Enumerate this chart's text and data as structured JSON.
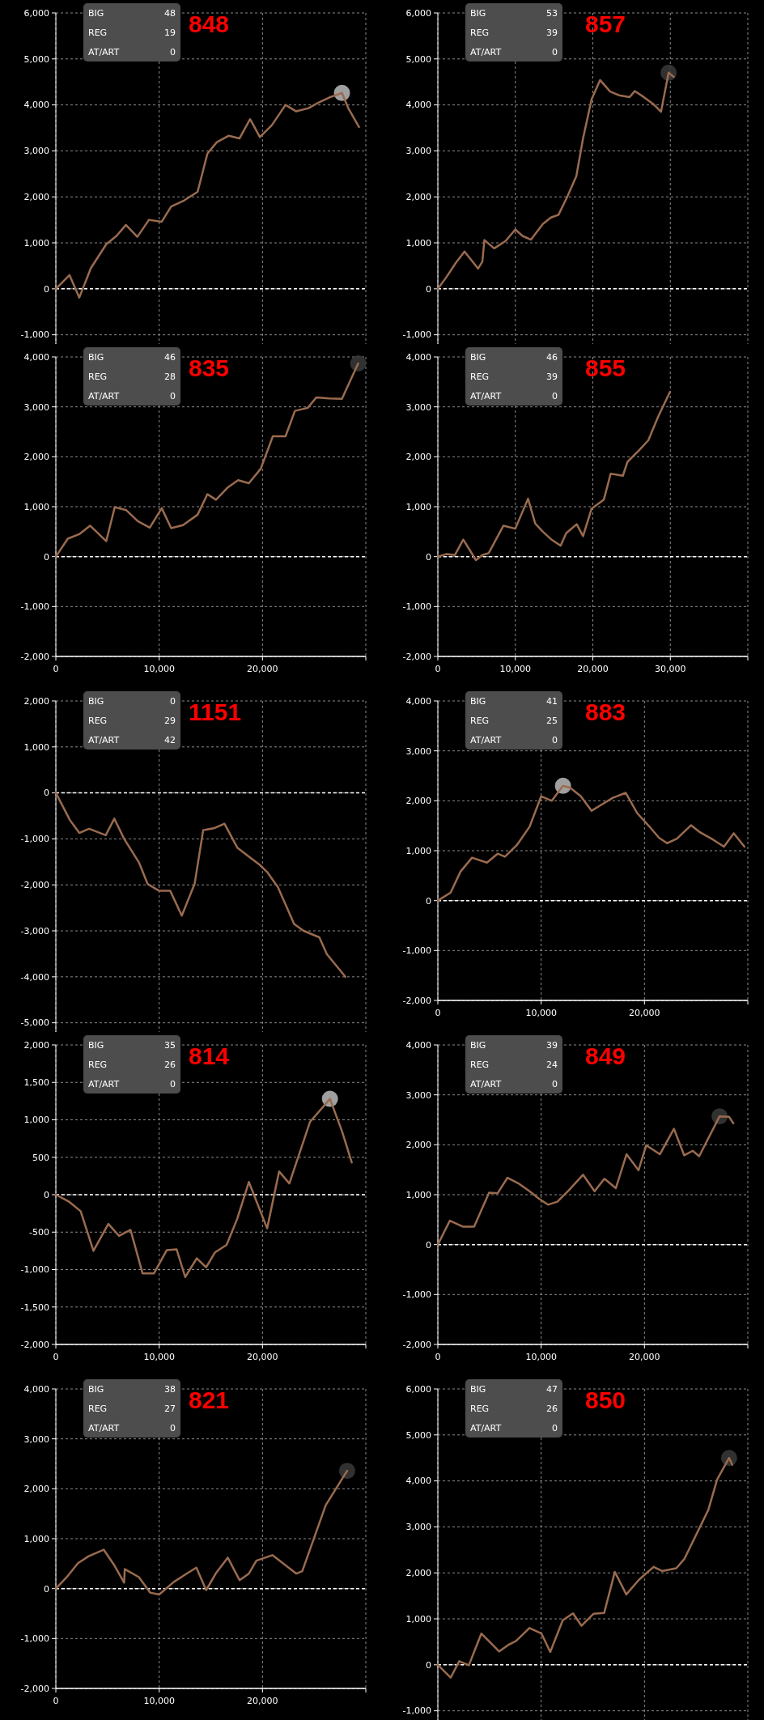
{
  "chart_data": [
    {
      "type": "line",
      "title": "848",
      "annotations": [
        "BIG",
        "48",
        "REG",
        "19",
        "AT/ART",
        "0"
      ],
      "xlim": [
        0,
        30000
      ],
      "xticks": [
        0,
        10000,
        20000,
        {
          "value": 30000,
          "label": null
        }
      ],
      "ylim": [
        -1200,
        6000
      ],
      "yticks": [
        {
          "value": -1000,
          "label": "-1,000"
        },
        0,
        {
          "value": 1000,
          "label": "1,000"
        },
        {
          "value": 2000,
          "label": "2,000"
        },
        {
          "value": 3000,
          "label": "3,000"
        },
        {
          "value": 4000,
          "label": "4,000"
        },
        {
          "value": 5000,
          "label": "5,000"
        },
        {
          "value": 6000,
          "label": "6,000"
        }
      ],
      "grid": true,
      "tick_labels": "y",
      "ref_lines": [
        {
          "axis": "y",
          "value": 0,
          "color": "#ffffff",
          "line_style": "dashed"
        }
      ],
      "series": [
        {
          "type": "scatter",
          "marker": "circle",
          "color": "#bbbbbb",
          "x": [
            27690
          ],
          "values": [
            4260
          ]
        },
        {
          "color": "#9a6b4f",
          "x": [
            0,
            1320,
            2270,
            3390,
            4880,
            5870,
            6780,
            7890,
            9010,
            10250,
            11160,
            12400,
            13720,
            14670,
            15580,
            16740,
            17770,
            18800,
            19750,
            20910,
            22230,
            23260,
            24460,
            25410,
            26450,
            27690,
            28300,
            29340
          ],
          "values": [
            0,
            300,
            -190,
            450,
            970,
            1150,
            1390,
            1130,
            1500,
            1460,
            1790,
            1920,
            2110,
            2940,
            3190,
            3330,
            3270,
            3690,
            3300,
            3560,
            4000,
            3860,
            3930,
            4050,
            4160,
            4260,
            3930,
            3520
          ]
        }
      ]
    },
    {
      "type": "line",
      "title": "857",
      "annotations": [
        "BIG",
        "53",
        "REG",
        "39",
        "AT/ART",
        "0"
      ],
      "xlim": [
        0,
        40000
      ],
      "xticks": [
        0,
        10000,
        20000,
        30000,
        {
          "value": 40000,
          "label": null
        }
      ],
      "ylim": [
        -1200,
        6000
      ],
      "yticks": [
        {
          "value": -1000,
          "label": "-1,000"
        },
        0,
        {
          "value": 1000,
          "label": "1,000"
        },
        {
          "value": 2000,
          "label": "2,000"
        },
        {
          "value": 3000,
          "label": "3,000"
        },
        {
          "value": 4000,
          "label": "4,000"
        },
        {
          "value": 5000,
          "label": "5,000"
        },
        {
          "value": 6000,
          "label": "6,000"
        }
      ],
      "grid": true,
      "tick_labels": "y",
      "ref_lines": [
        {
          "axis": "y",
          "value": 0,
          "color": "#ffffff",
          "line_style": "dashed"
        }
      ],
      "series": [
        {
          "type": "scatter",
          "marker": "circle",
          "color": "#3a3a3a",
          "x": [
            29780
          ],
          "values": [
            4700
          ]
        },
        {
          "color": "#9a6b4f",
          "x": [
            0,
            1090,
            2300,
            3440,
            5190,
            5740,
            6010,
            7270,
            8740,
            10000,
            10930,
            12020,
            13550,
            14590,
            15570,
            16670,
            17870,
            18740,
            19840,
            20930,
            22240,
            23390,
            24750,
            25410,
            26500,
            27870,
            28800,
            29780,
            30440
          ],
          "values": [
            0,
            250,
            560,
            810,
            440,
            590,
            1060,
            880,
            1040,
            1290,
            1150,
            1070,
            1410,
            1550,
            1610,
            1990,
            2450,
            3270,
            4120,
            4540,
            4290,
            4210,
            4170,
            4300,
            4180,
            4010,
            3850,
            4700,
            4610
          ]
        }
      ]
    },
    {
      "type": "line",
      "title": "835",
      "annotations": [
        "BIG",
        "46",
        "REG",
        "28",
        "AT/ART",
        "0"
      ],
      "xlim": [
        0,
        30000
      ],
      "xticks": [
        0,
        {
          "value": 10000,
          "label": "10,000"
        },
        {
          "value": 20000,
          "label": "20,000"
        },
        {
          "value": 30000,
          "label": null
        }
      ],
      "ylim": [
        -2000,
        4000
      ],
      "yticks": [
        {
          "value": -2000,
          "label": "-2,000"
        },
        {
          "value": -1000,
          "label": "-1,000"
        },
        0,
        {
          "value": 1000,
          "label": "1,000"
        },
        {
          "value": 2000,
          "label": "2,000"
        },
        {
          "value": 3000,
          "label": "3,000"
        },
        {
          "value": 4000,
          "label": "4,000"
        }
      ],
      "grid": true,
      "ref_lines": [
        {
          "axis": "y",
          "value": 0,
          "color": "#ffffff",
          "line_style": "dashed"
        }
      ],
      "series": [
        {
          "type": "scatter",
          "marker": "circle",
          "color": "#3a3a3a",
          "x": [
            29260
          ],
          "values": [
            3870
          ]
        },
        {
          "color": "#9a6b4f",
          "x": [
            0,
            1160,
            2270,
            3310,
            4880,
            5700,
            6820,
            7930,
            9090,
            10250,
            11160,
            12310,
            13720,
            14670,
            15500,
            16610,
            17640,
            18680,
            19830,
            21000,
            22230,
            23140,
            24380,
            25210,
            26450,
            27690,
            29260
          ],
          "values": [
            0,
            360,
            450,
            620,
            310,
            990,
            930,
            710,
            580,
            970,
            570,
            630,
            840,
            1250,
            1140,
            1380,
            1530,
            1470,
            1760,
            2410,
            2410,
            2920,
            2980,
            3190,
            3170,
            3160,
            3870
          ]
        }
      ]
    },
    {
      "type": "line",
      "title": "855",
      "annotations": [
        "BIG",
        "46",
        "REG",
        "39",
        "AT/ART",
        "0"
      ],
      "xlim": [
        0,
        40000
      ],
      "xticks": [
        0,
        {
          "value": 10000,
          "label": "10,000"
        },
        {
          "value": 20000,
          "label": "20,000"
        },
        {
          "value": 30000,
          "label": "30,000"
        },
        {
          "value": 40000,
          "label": null
        }
      ],
      "ylim": [
        -2000,
        4000
      ],
      "yticks": [
        {
          "value": -2000,
          "label": "-2,000"
        },
        {
          "value": -1000,
          "label": "-1,000"
        },
        0,
        {
          "value": 1000,
          "label": "1,000"
        },
        {
          "value": 2000,
          "label": "2,000"
        },
        {
          "value": 3000,
          "label": "3,000"
        },
        {
          "value": 4000,
          "label": "4,000"
        }
      ],
      "grid": true,
      "ref_lines": [
        {
          "axis": "y",
          "value": 0,
          "color": "#ffffff",
          "line_style": "dashed"
        }
      ],
      "series": [
        {
          "color": "#9a6b4f",
          "x": [
            0,
            1090,
            2190,
            3280,
            4920,
            5740,
            6560,
            8470,
            10000,
            11640,
            12570,
            13550,
            14750,
            15850,
            16560,
            17920,
            18740,
            19840,
            21420,
            22300,
            23880,
            24480,
            25960,
            27160,
            28420,
            29950
          ],
          "values": [
            0,
            50,
            30,
            340,
            -70,
            30,
            70,
            620,
            560,
            1160,
            660,
            500,
            330,
            220,
            470,
            650,
            410,
            960,
            1140,
            1660,
            1620,
            1900,
            2130,
            2330,
            2800,
            3300
          ]
        }
      ]
    },
    {
      "type": "line",
      "title": "1151",
      "annotations": [
        "BIG",
        "0",
        "REG",
        "29",
        "AT/ART",
        "42"
      ],
      "xlim": [
        0,
        30000
      ],
      "xticks": [
        0,
        10000,
        20000,
        {
          "value": 30000,
          "label": null
        }
      ],
      "ylim": [
        -5200,
        2000
      ],
      "yticks": [
        {
          "value": -5000,
          "label": "-5,000"
        },
        {
          "value": -4000,
          "label": "-4,000"
        },
        {
          "value": -3000,
          "label": "-3,000"
        },
        {
          "value": -2000,
          "label": "-2,000"
        },
        {
          "value": -1000,
          "label": "-1,000"
        },
        0,
        {
          "value": 1000,
          "label": "1,000"
        },
        {
          "value": 2000,
          "label": "2,000"
        }
      ],
      "grid": true,
      "tick_labels": "y",
      "ref_lines": [
        {
          "axis": "y",
          "value": 0,
          "color": "#ffffff",
          "line_style": "dashed"
        }
      ],
      "series": [
        {
          "color": "#9a6b4f",
          "x": [
            0,
            1360,
            2270,
            3220,
            4830,
            5660,
            6610,
            8060,
            8880,
            10000,
            11070,
            12190,
            13430,
            14260,
            15290,
            16320,
            17560,
            18600,
            19710,
            20450,
            21490,
            23060,
            23970,
            25500,
            26240,
            28020
          ],
          "values": [
            0,
            -590,
            -870,
            -780,
            -920,
            -560,
            -1000,
            -1520,
            -1980,
            -2130,
            -2130,
            -2670,
            -1980,
            -810,
            -770,
            -670,
            -1190,
            -1370,
            -1560,
            -1720,
            -2050,
            -2850,
            -3000,
            -3140,
            -3510,
            -4000
          ]
        }
      ]
    },
    {
      "type": "line",
      "title": "883",
      "annotations": [
        "BIG",
        "41",
        "REG",
        "25",
        "AT/ART",
        "0"
      ],
      "xlim": [
        0,
        30000
      ],
      "xticks": [
        0,
        {
          "value": 10000,
          "label": "10,000"
        },
        {
          "value": 20000,
          "label": "20,000"
        },
        {
          "value": 30000,
          "label": null
        }
      ],
      "ylim": [
        -2000,
        4000
      ],
      "yticks": [
        {
          "value": -2000,
          "label": "-2,000"
        },
        {
          "value": -1000,
          "label": "-1,000"
        },
        0,
        {
          "value": 1000,
          "label": "1,000"
        },
        {
          "value": 2000,
          "label": "2,000"
        },
        {
          "value": 3000,
          "label": "3,000"
        },
        {
          "value": 4000,
          "label": "4,000"
        }
      ],
      "grid": true,
      "ref_lines": [
        {
          "axis": "y",
          "value": 0,
          "color": "#ffffff",
          "line_style": "dashed"
        }
      ],
      "series": [
        {
          "type": "scatter",
          "marker": "circle",
          "color": "#bbbbbb",
          "x": [
            12110
          ],
          "values": [
            2300
          ]
        },
        {
          "color": "#9a6b4f",
          "x": [
            0,
            1240,
            2190,
            3310,
            4750,
            5790,
            6490,
            7640,
            8880,
            10000,
            11030,
            12110,
            12810,
            13840,
            14880,
            15830,
            16940,
            18180,
            19300,
            20450,
            21400,
            22190,
            23140,
            24500,
            25290,
            26650,
            27690,
            28640,
            29670
          ],
          "values": [
            0,
            160,
            580,
            860,
            760,
            940,
            880,
            1110,
            1480,
            2090,
            2000,
            2300,
            2260,
            2090,
            1800,
            1920,
            2060,
            2160,
            1750,
            1490,
            1260,
            1150,
            1240,
            1510,
            1380,
            1220,
            1080,
            1350,
            1080
          ]
        }
      ]
    },
    {
      "type": "line",
      "title": "814",
      "annotations": [
        "BIG",
        "35",
        "REG",
        "26",
        "AT/ART",
        "0"
      ],
      "xlim": [
        0,
        30000
      ],
      "xticks": [
        0,
        {
          "value": 10000,
          "label": "10,000"
        },
        {
          "value": 20000,
          "label": "20,000"
        },
        {
          "value": 30000,
          "label": null
        }
      ],
      "ylim": [
        -2000,
        2000
      ],
      "yticks": [
        {
          "value": -2000,
          "label": "-2,000"
        },
        {
          "value": -1500,
          "label": "-1,500"
        },
        {
          "value": -1000,
          "label": "-1,000"
        },
        -500,
        0,
        500,
        {
          "value": 1000,
          "label": "1,000"
        },
        {
          "value": 1500,
          "label": "1,500"
        },
        {
          "value": 2000,
          "label": "2,000"
        }
      ],
      "grid": true,
      "ref_lines": [
        {
          "axis": "y",
          "value": 0,
          "color": "#ffffff",
          "line_style": "dashed"
        }
      ],
      "series": [
        {
          "type": "scatter",
          "marker": "circle",
          "color": "#bbbbbb",
          "x": [
            26530
          ],
          "values": [
            1280
          ]
        },
        {
          "color": "#9a6b4f",
          "x": [
            0,
            1240,
            2400,
            3640,
            5080,
            6120,
            7230,
            8390,
            9500,
            10740,
            11690,
            12520,
            13640,
            14550,
            15410,
            16530,
            17560,
            18680,
            20450,
            21610,
            22600,
            24590,
            26530,
            27690,
            28640
          ],
          "values": [
            0,
            -90,
            -220,
            -750,
            -390,
            -550,
            -470,
            -1050,
            -1050,
            -740,
            -730,
            -1100,
            -850,
            -970,
            -770,
            -670,
            -320,
            170,
            -450,
            310,
            150,
            970,
            1280,
            850,
            430
          ]
        }
      ]
    },
    {
      "type": "line",
      "title": "849",
      "annotations": [
        "BIG",
        "39",
        "REG",
        "24",
        "AT/ART",
        "0"
      ],
      "xlim": [
        0,
        30000
      ],
      "xticks": [
        0,
        {
          "value": 10000,
          "label": "10,000"
        },
        {
          "value": 20000,
          "label": "20,000"
        },
        {
          "value": 30000,
          "label": null
        }
      ],
      "ylim": [
        -2000,
        4000
      ],
      "yticks": [
        {
          "value": -2000,
          "label": "-2,000"
        },
        {
          "value": -1000,
          "label": "-1,000"
        },
        0,
        {
          "value": 1000,
          "label": "1,000"
        },
        {
          "value": 2000,
          "label": "2,000"
        },
        {
          "value": 3000,
          "label": "3,000"
        },
        {
          "value": 4000,
          "label": "4,000"
        }
      ],
      "grid": true,
      "ref_lines": [
        {
          "axis": "y",
          "value": 0,
          "color": "#ffffff",
          "line_style": "dashed"
        }
      ],
      "series": [
        {
          "type": "scatter",
          "marker": "circle",
          "color": "#3a3a3a",
          "x": [
            27270
          ],
          "values": [
            2570
          ]
        },
        {
          "color": "#9a6b4f",
          "x": [
            0,
            1160,
            2400,
            3510,
            4960,
            5790,
            6740,
            7770,
            8880,
            9790,
            10660,
            11570,
            12690,
            14050,
            15170,
            16120,
            17230,
            18260,
            19420,
            20170,
            21490,
            22850,
            23840,
            24670,
            25290,
            27270,
            28180,
            28600
          ],
          "values": [
            0,
            480,
            360,
            360,
            1040,
            1030,
            1340,
            1230,
            1070,
            920,
            800,
            860,
            1090,
            1400,
            1070,
            1320,
            1130,
            1810,
            1490,
            1990,
            1810,
            2320,
            1790,
            1880,
            1770,
            2570,
            2560,
            2430
          ]
        }
      ]
    },
    {
      "type": "line",
      "title": "821",
      "annotations": [
        "BIG",
        "38",
        "REG",
        "27",
        "AT/ART",
        "0"
      ],
      "xlim": [
        0,
        30000
      ],
      "xticks": [
        0,
        {
          "value": 10000,
          "label": "10,000"
        },
        {
          "value": 20000,
          "label": "20,000"
        },
        {
          "value": 30000,
          "label": null
        }
      ],
      "ylim": [
        -2000,
        4000
      ],
      "yticks": [
        {
          "value": -2000,
          "label": "-2,000"
        },
        {
          "value": -1000,
          "label": "-1,000"
        },
        0,
        {
          "value": 1000,
          "label": "1,000"
        },
        {
          "value": 2000,
          "label": "2,000"
        },
        {
          "value": 3000,
          "label": "3,000"
        },
        {
          "value": 4000,
          "label": "4,000"
        }
      ],
      "grid": true,
      "ref_lines": [
        {
          "axis": "y",
          "value": 0,
          "color": "#ffffff",
          "line_style": "dashed"
        }
      ],
      "series": [
        {
          "type": "scatter",
          "marker": "circle",
          "color": "#3a3a3a",
          "x": [
            28190
          ],
          "values": [
            2360
          ]
        },
        {
          "color": "#9a6b4f",
          "x": [
            0,
            1060,
            2140,
            3180,
            4630,
            5680,
            6610,
            6670,
            8040,
            9120,
            10000,
            11400,
            12740,
            13600,
            14550,
            15530,
            16640,
            17780,
            18680,
            19410,
            20960,
            23280,
            23850,
            26120,
            28190
          ],
          "values": [
            0,
            230,
            510,
            650,
            780,
            460,
            120,
            390,
            230,
            -80,
            -120,
            130,
            310,
            420,
            -30,
            320,
            620,
            170,
            300,
            560,
            670,
            300,
            350,
            1670,
            2360
          ]
        }
      ]
    },
    {
      "type": "line",
      "title": "850",
      "annotations": [
        "BIG",
        "47",
        "REG",
        "26",
        "AT/ART",
        "0"
      ],
      "xlim": [
        0,
        30000
      ],
      "xticks": [
        0,
        10000,
        20000,
        {
          "value": 30000,
          "label": null
        }
      ],
      "ylim": [
        -1200,
        6000
      ],
      "yticks": [
        {
          "value": -1000,
          "label": "-1,000"
        },
        0,
        {
          "value": 1000,
          "label": "1,000"
        },
        {
          "value": 2000,
          "label": "2,000"
        },
        {
          "value": 3000,
          "label": "3,000"
        },
        {
          "value": 4000,
          "label": "4,000"
        },
        {
          "value": 5000,
          "label": "5,000"
        },
        {
          "value": 6000,
          "label": "6,000"
        }
      ],
      "grid": true,
      "tick_labels": "y",
      "ref_lines": [
        {
          "axis": "y",
          "value": 0,
          "color": "#ffffff",
          "line_style": "dashed"
        }
      ],
      "series": [
        {
          "type": "scatter",
          "marker": "circle",
          "color": "#3a3a3a",
          "x": [
            28190
          ],
          "values": [
            4500
          ]
        },
        {
          "color": "#9a6b4f",
          "x": [
            0,
            1240,
            2070,
            3000,
            4210,
            5940,
            6800,
            7570,
            8860,
            10030,
            10880,
            12090,
            13080,
            13900,
            15060,
            16100,
            17130,
            18240,
            19460,
            20880,
            21710,
            23080,
            23850,
            26180,
            27030,
            28190,
            28500
          ],
          "values": [
            0,
            -280,
            80,
            -10,
            680,
            290,
            430,
            520,
            800,
            680,
            280,
            970,
            1120,
            850,
            1110,
            1130,
            2020,
            1530,
            1850,
            2130,
            2040,
            2100,
            2300,
            3370,
            4030,
            4500,
            4350
          ]
        }
      ]
    }
  ]
}
